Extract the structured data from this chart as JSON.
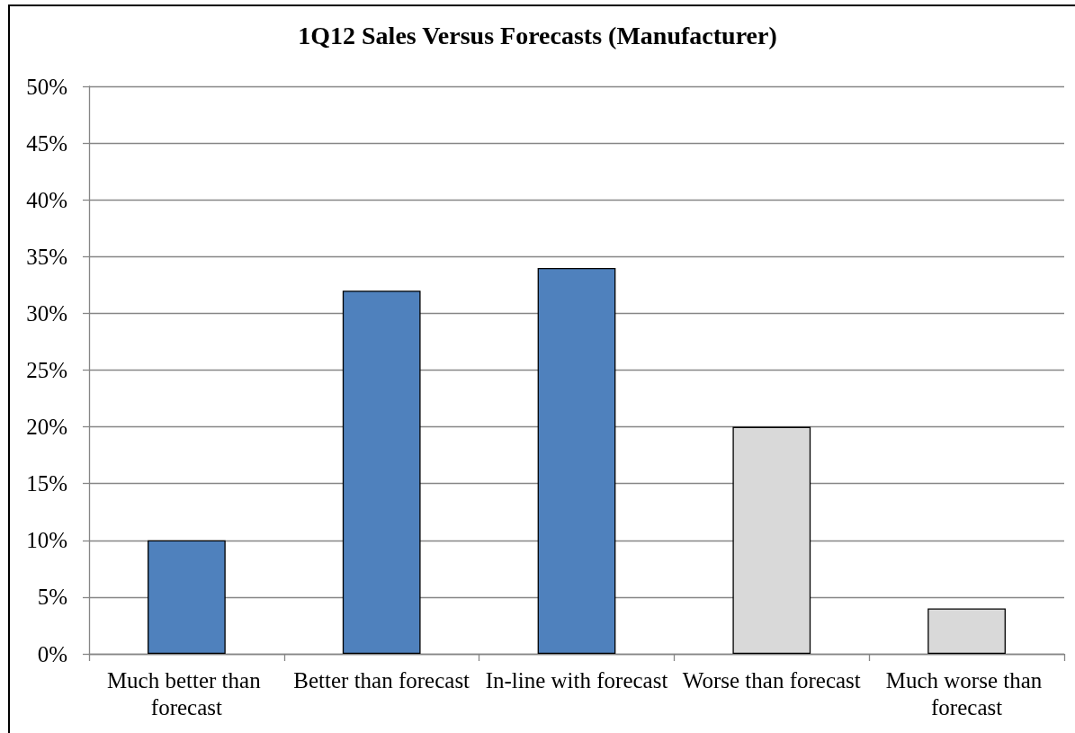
{
  "chart_data": {
    "type": "bar",
    "title": "1Q12 Sales Versus Forecasts (Manufacturer)",
    "categories": [
      "Much better than forecast",
      "Better than forecast",
      "In-line with forecast",
      "Worse than forecast",
      "Much worse than forecast"
    ],
    "values": [
      10,
      32,
      34,
      20,
      4
    ],
    "colors": [
      "#4f81bd",
      "#4f81bd",
      "#4f81bd",
      "#d9d9d9",
      "#d9d9d9"
    ],
    "ylim": [
      0,
      50
    ],
    "yticks": [
      {
        "value": 0,
        "label": "0%"
      },
      {
        "value": 5,
        "label": "5%"
      },
      {
        "value": 10,
        "label": "10%"
      },
      {
        "value": 15,
        "label": "15%"
      },
      {
        "value": 20,
        "label": "20%"
      },
      {
        "value": 25,
        "label": "25%"
      },
      {
        "value": 30,
        "label": "30%"
      },
      {
        "value": 35,
        "label": "35%"
      },
      {
        "value": 40,
        "label": "40%"
      },
      {
        "value": 45,
        "label": "45%"
      },
      {
        "value": 50,
        "label": "50%"
      }
    ],
    "grid": true
  }
}
